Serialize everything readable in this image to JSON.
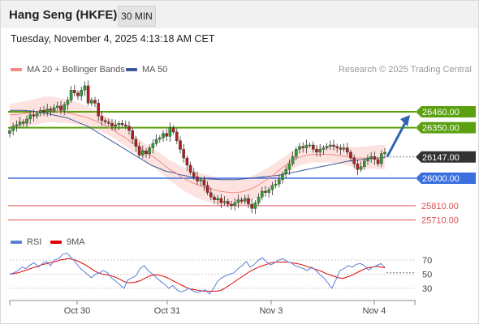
{
  "header": {
    "title": "Hang Seng (HKFE)",
    "timeframe": "30 MIN"
  },
  "datetime": "Tuesday, November 4, 2025 4:13:18 AM CET",
  "legend": {
    "ma20": {
      "label": "MA 20 + Bollinger Bands",
      "color": "#f28b82"
    },
    "ma50": {
      "label": "MA 50",
      "color": "#3c5a9a"
    }
  },
  "copyright": "Research © 2025 Trading Central",
  "rsi_legend": {
    "rsi": {
      "label": "RSI",
      "color": "#5b7fd6"
    },
    "ma9": {
      "label": "9MA",
      "color": "#e00000"
    }
  },
  "colors": {
    "up": "#2f9e2f",
    "down": "#b02020",
    "resistance": "#5aa010",
    "support": "#3b6fe0",
    "target": "#e05050",
    "current": "#333333",
    "arrow": "#2f66b3"
  },
  "chart_data": {
    "type": "candlestick",
    "instrument": "Hang Seng (HKFE)",
    "interval": "30 MIN",
    "x_ticks": [
      "Oct 30",
      "Oct 31",
      "Nov 3",
      "Nov 4"
    ],
    "levels": [
      {
        "label": "26460.00",
        "value": 26460,
        "kind": "resistance"
      },
      {
        "label": "26350.00",
        "value": 26350,
        "kind": "resistance"
      },
      {
        "label": "26147.00",
        "value": 26147,
        "kind": "current"
      },
      {
        "label": "26000.00",
        "value": 26000,
        "kind": "support"
      },
      {
        "label": "25810.00",
        "value": 25810,
        "kind": "target"
      },
      {
        "label": "25710.00",
        "value": 25710,
        "kind": "target"
      }
    ],
    "candles_close": [
      26330,
      26360,
      26370,
      26390,
      26380,
      26410,
      26440,
      26430,
      26450,
      26470,
      26460,
      26480,
      26470,
      26490,
      26500,
      26470,
      26510,
      26540,
      26610,
      26590,
      26570,
      26610,
      26640,
      26520,
      26540,
      26520,
      26430,
      26400,
      26390,
      26380,
      26360,
      26370,
      26380,
      26370,
      26360,
      26330,
      26270,
      26220,
      26160,
      26190,
      26170,
      26210,
      26240,
      26270,
      26280,
      26310,
      26290,
      26350,
      26320,
      26260,
      26200,
      26140,
      26090,
      26040,
      26010,
      25980,
      25990,
      25950,
      25900,
      25870,
      25850,
      25860,
      25830,
      25840,
      25820,
      25810,
      25830,
      25850,
      25840,
      25860,
      25820,
      25790,
      25830,
      25870,
      25910,
      25900,
      25920,
      25950,
      25960,
      25990,
      26030,
      26060,
      26100,
      26150,
      26200,
      26220,
      26210,
      26230,
      26230,
      26200,
      26180,
      26200,
      26210,
      26220,
      26230,
      26220,
      26210,
      26200,
      26210,
      26180,
      26140,
      26100,
      26060,
      26080,
      26120,
      26140,
      26150,
      26130,
      26100,
      26170,
      26180
    ],
    "ma20": [
      26440,
      26440,
      26445,
      26450,
      26455,
      26460,
      26470,
      26470,
      26470,
      26460,
      26455,
      26450,
      26440,
      26430,
      26420,
      26405,
      26390,
      26370,
      26350,
      26330,
      26300,
      26280,
      26250,
      26230,
      26200,
      26170,
      26150,
      26120,
      26090,
      26060,
      26040,
      26010,
      25990,
      25970,
      25955,
      25940,
      25930,
      25920,
      25910,
      25905,
      25900,
      25900,
      25905,
      25915,
      25930,
      25950,
      25975,
      26000,
      26030,
      26060,
      26090,
      26120,
      26140,
      26150,
      26160,
      26165,
      26165,
      26165,
      26165,
      26160,
      26155,
      26150,
      26145,
      26140,
      26140,
      26140,
      26140,
      26140,
      26140
    ],
    "ma50": [
      26470,
      26470,
      26470,
      26465,
      26460,
      26450,
      26440,
      26430,
      26420,
      26400,
      26380,
      26360,
      26330,
      26300,
      26270,
      26240,
      26210,
      26180,
      26150,
      26120,
      26090,
      26070,
      26050,
      26040,
      26025,
      26015,
      26005,
      26000,
      25995,
      25992,
      25990,
      25990,
      25990,
      25995,
      26000,
      26005,
      26010,
      26015,
      26020,
      26030,
      26040,
      26050,
      26060,
      26070,
      26080,
      26090,
      26100,
      26110,
      26120,
      26125,
      26130,
      26135,
      26140,
      26145
    ],
    "rsi": [
      50,
      52,
      55,
      60,
      58,
      63,
      66,
      60,
      65,
      68,
      62,
      70,
      72,
      78,
      80,
      74,
      68,
      60,
      55,
      50,
      45,
      50,
      52,
      55,
      52,
      45,
      40,
      35,
      30,
      42,
      45,
      48,
      58,
      62,
      55,
      50,
      45,
      40,
      36,
      30,
      34,
      28,
      25,
      27,
      30,
      26,
      24,
      26,
      28,
      22,
      30,
      40,
      45,
      48,
      50,
      52,
      58,
      62,
      68,
      60,
      64,
      70,
      73,
      67,
      63,
      66,
      70,
      72,
      68,
      66,
      62,
      60,
      58,
      55,
      60,
      56,
      50,
      45,
      38,
      30,
      42,
      55,
      58,
      62,
      60,
      64,
      65,
      62,
      56,
      60,
      62,
      65,
      60
    ],
    "rsi_ma9": [
      50,
      51,
      52,
      54,
      56,
      58,
      60,
      62,
      64,
      65,
      67,
      68,
      70,
      71,
      72,
      71,
      69,
      66,
      63,
      59,
      55,
      52,
      50,
      49,
      48,
      46,
      43,
      40,
      38,
      38,
      39,
      41,
      44,
      47,
      49,
      49,
      48,
      46,
      43,
      40,
      37,
      34,
      31,
      29,
      28,
      27,
      26,
      26,
      26,
      26,
      27,
      30,
      34,
      38,
      42,
      46,
      50,
      54,
      57,
      60,
      62,
      64,
      66,
      67,
      67,
      67,
      67,
      66,
      65,
      64,
      62,
      60,
      58,
      56,
      54,
      51,
      49,
      47,
      45,
      44,
      46,
      48,
      51,
      54,
      57,
      59,
      60,
      61,
      60,
      59
    ]
  }
}
